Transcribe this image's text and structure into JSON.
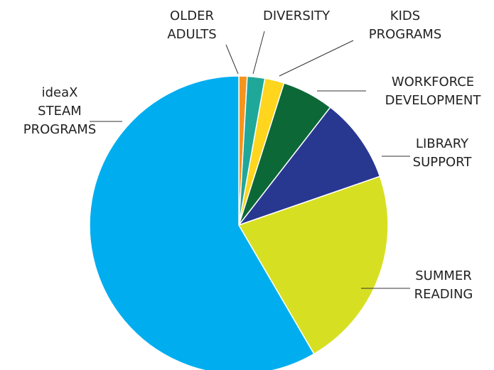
{
  "chart_data": {
    "type": "pie",
    "title": "",
    "slices": [
      {
        "key": "older",
        "lines": [
          "OLDER",
          "ADULTS"
        ],
        "value": 0.9,
        "color": "#f7941d"
      },
      {
        "key": "diversity",
        "lines": [
          "DIVERSITY"
        ],
        "value": 1.9,
        "color": "#1fa89a"
      },
      {
        "key": "kids",
        "lines": [
          "KIDS",
          "PROGRAMS"
        ],
        "value": 2.1,
        "color": "#ffd51d"
      },
      {
        "key": "workforce",
        "lines": [
          "WORKFORCE",
          "DEVELOPMENT"
        ],
        "value": 5.6,
        "color": "#0d6838"
      },
      {
        "key": "library",
        "lines": [
          "LIBRARY",
          "SUPPORT"
        ],
        "value": 9.2,
        "color": "#283891"
      },
      {
        "key": "summer",
        "lines": [
          "SUMMER",
          "READING"
        ],
        "value": 21.9,
        "color": "#d7df23"
      },
      {
        "key": "ideax",
        "lines": [
          "ideaX",
          "STEAM",
          "PROGRAMS"
        ],
        "value": 58.4,
        "color": "#00aeef"
      }
    ]
  }
}
